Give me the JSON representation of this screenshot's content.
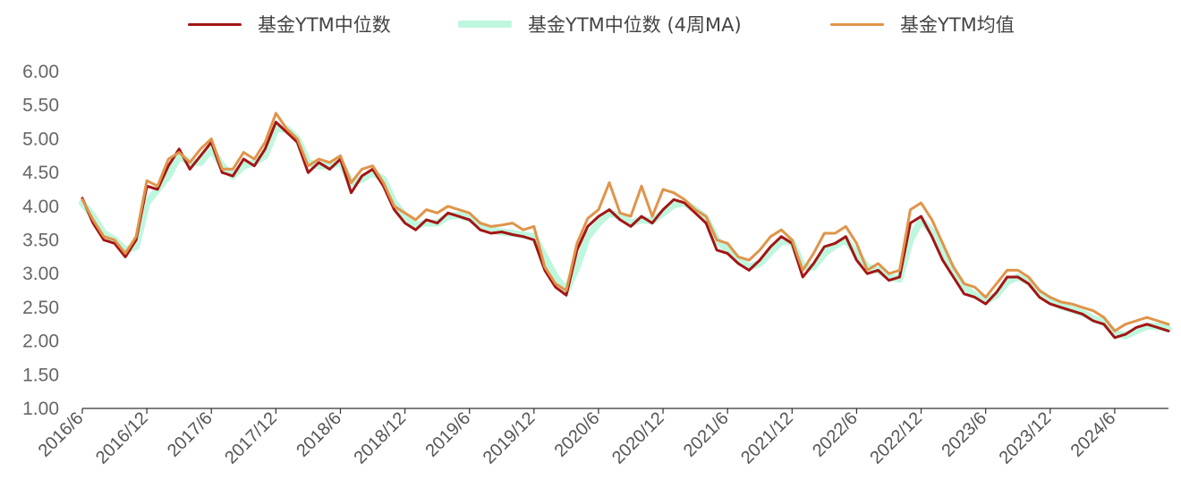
{
  "chart_data": {
    "type": "line",
    "title": "",
    "xlabel": "",
    "ylabel": "",
    "ylim": [
      1.0,
      6.0
    ],
    "yticks": [
      "1.00",
      "1.50",
      "2.00",
      "2.50",
      "3.00",
      "3.50",
      "4.00",
      "4.50",
      "5.00",
      "5.50",
      "6.00"
    ],
    "xticks": [
      "2016/6",
      "2016/12",
      "2017/6",
      "2017/12",
      "2018/6",
      "2018/12",
      "2019/6",
      "2019/12",
      "2020/6",
      "2020/12",
      "2021/6",
      "2021/12",
      "2022/6",
      "2022/12",
      "2023/6",
      "2023/12",
      "2024/6"
    ],
    "x_range": [
      "2016-06",
      "2024-11"
    ],
    "grid": false,
    "legend_position": "top",
    "x": [
      "2016-06",
      "2016-07",
      "2016-08",
      "2016-09",
      "2016-10",
      "2016-11",
      "2016-12",
      "2017-01",
      "2017-02",
      "2017-03",
      "2017-04",
      "2017-05",
      "2017-06",
      "2017-07",
      "2017-08",
      "2017-09",
      "2017-10",
      "2017-11",
      "2017-12",
      "2018-01",
      "2018-02",
      "2018-03",
      "2018-04",
      "2018-05",
      "2018-06",
      "2018-07",
      "2018-08",
      "2018-09",
      "2018-10",
      "2018-11",
      "2018-12",
      "2019-01",
      "2019-02",
      "2019-03",
      "2019-04",
      "2019-05",
      "2019-06",
      "2019-07",
      "2019-08",
      "2019-09",
      "2019-10",
      "2019-11",
      "2019-12",
      "2020-01",
      "2020-02",
      "2020-03",
      "2020-04",
      "2020-05",
      "2020-06",
      "2020-07",
      "2020-08",
      "2020-09",
      "2020-10",
      "2020-11",
      "2020-12",
      "2021-01",
      "2021-02",
      "2021-03",
      "2021-04",
      "2021-05",
      "2021-06",
      "2021-07",
      "2021-08",
      "2021-09",
      "2021-10",
      "2021-11",
      "2021-12",
      "2022-01",
      "2022-02",
      "2022-03",
      "2022-04",
      "2022-05",
      "2022-06",
      "2022-07",
      "2022-08",
      "2022-09",
      "2022-10",
      "2022-11",
      "2022-12",
      "2023-01",
      "2023-02",
      "2023-03",
      "2023-04",
      "2023-05",
      "2023-06",
      "2023-07",
      "2023-08",
      "2023-09",
      "2023-10",
      "2023-11",
      "2023-12",
      "2024-01",
      "2024-02",
      "2024-03",
      "2024-04",
      "2024-05",
      "2024-06",
      "2024-07",
      "2024-08",
      "2024-09",
      "2024-10",
      "2024-11"
    ],
    "series": [
      {
        "name": "基金YTM中位数",
        "color": "#a31515",
        "width": 3,
        "values": [
          4.12,
          3.75,
          3.5,
          3.45,
          3.25,
          3.5,
          4.3,
          4.25,
          4.6,
          4.85,
          4.55,
          4.75,
          4.95,
          4.5,
          4.45,
          4.7,
          4.6,
          4.85,
          5.25,
          5.1,
          4.95,
          4.5,
          4.65,
          4.55,
          4.7,
          4.2,
          4.45,
          4.55,
          4.3,
          3.95,
          3.75,
          3.65,
          3.8,
          3.75,
          3.9,
          3.85,
          3.8,
          3.65,
          3.6,
          3.62,
          3.58,
          3.55,
          3.5,
          3.05,
          2.8,
          2.68,
          3.35,
          3.7,
          3.85,
          3.95,
          3.8,
          3.7,
          3.85,
          3.75,
          3.95,
          4.1,
          4.05,
          3.9,
          3.75,
          3.35,
          3.3,
          3.15,
          3.05,
          3.2,
          3.4,
          3.55,
          3.45,
          2.95,
          3.15,
          3.4,
          3.45,
          3.55,
          3.2,
          3.0,
          3.05,
          2.9,
          2.95,
          3.75,
          3.85,
          3.55,
          3.2,
          2.95,
          2.7,
          2.65,
          2.55,
          2.72,
          2.95,
          2.95,
          2.85,
          2.65,
          2.55,
          2.5,
          2.45,
          2.4,
          2.3,
          2.25,
          2.05,
          2.1,
          2.2,
          2.25,
          2.2,
          2.15
        ]
      },
      {
        "name": "基金YTM中位数 (4周MA)",
        "color": "#bff7de",
        "width": 8,
        "values": [
          4.05,
          3.85,
          3.6,
          3.5,
          3.35,
          3.4,
          4.05,
          4.25,
          4.45,
          4.75,
          4.65,
          4.65,
          4.85,
          4.6,
          4.45,
          4.6,
          4.65,
          4.75,
          5.15,
          5.15,
          5.0,
          4.65,
          4.6,
          4.6,
          4.65,
          4.35,
          4.4,
          4.5,
          4.4,
          4.05,
          3.85,
          3.72,
          3.75,
          3.75,
          3.85,
          3.87,
          3.82,
          3.72,
          3.65,
          3.62,
          3.6,
          3.57,
          3.55,
          3.25,
          2.95,
          2.75,
          3.1,
          3.55,
          3.75,
          3.9,
          3.85,
          3.75,
          3.8,
          3.78,
          3.9,
          4.02,
          4.05,
          3.95,
          3.82,
          3.5,
          3.35,
          3.2,
          3.1,
          3.15,
          3.32,
          3.48,
          3.47,
          3.1,
          3.1,
          3.3,
          3.42,
          3.5,
          3.3,
          3.1,
          3.05,
          2.95,
          2.92,
          3.5,
          3.8,
          3.62,
          3.3,
          3.05,
          2.8,
          2.68,
          2.6,
          2.68,
          2.88,
          2.95,
          2.88,
          2.72,
          2.6,
          2.52,
          2.47,
          2.42,
          2.33,
          2.28,
          2.12,
          2.08,
          2.15,
          2.22,
          2.22,
          2.18
        ]
      },
      {
        "name": "基金YTM均值",
        "color": "#e0944a",
        "width": 3,
        "values": [
          4.1,
          3.8,
          3.55,
          3.5,
          3.3,
          3.55,
          4.38,
          4.3,
          4.7,
          4.8,
          4.65,
          4.85,
          5.0,
          4.55,
          4.55,
          4.8,
          4.7,
          4.95,
          5.38,
          5.15,
          5.0,
          4.6,
          4.7,
          4.65,
          4.75,
          4.35,
          4.55,
          4.6,
          4.35,
          4.0,
          3.9,
          3.8,
          3.95,
          3.9,
          4.0,
          3.95,
          3.9,
          3.75,
          3.7,
          3.72,
          3.75,
          3.65,
          3.7,
          3.1,
          2.85,
          2.75,
          3.45,
          3.82,
          3.95,
          4.35,
          3.9,
          3.85,
          4.3,
          3.85,
          4.25,
          4.2,
          4.1,
          3.95,
          3.85,
          3.5,
          3.45,
          3.25,
          3.2,
          3.35,
          3.55,
          3.65,
          3.5,
          3.05,
          3.3,
          3.6,
          3.6,
          3.7,
          3.45,
          3.05,
          3.15,
          3.0,
          3.05,
          3.95,
          4.05,
          3.8,
          3.45,
          3.1,
          2.85,
          2.8,
          2.65,
          2.85,
          3.05,
          3.05,
          2.95,
          2.75,
          2.65,
          2.58,
          2.55,
          2.5,
          2.45,
          2.35,
          2.15,
          2.25,
          2.3,
          2.35,
          2.3,
          2.25
        ]
      }
    ]
  }
}
